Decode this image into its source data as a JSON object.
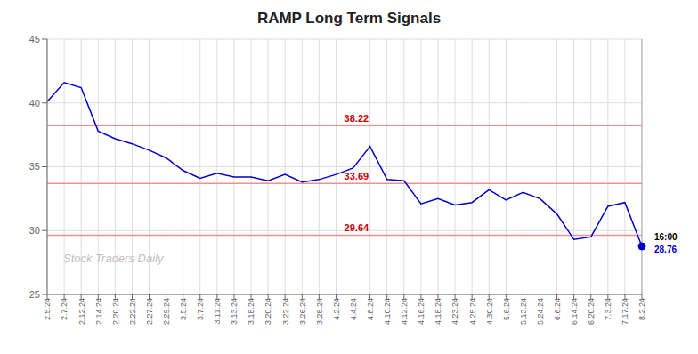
{
  "chart_data": {
    "type": "line",
    "title": "RAMP Long Term Signals",
    "categories": [
      "2.5.24",
      "2.7.24",
      "2.12.24",
      "2.14.24",
      "2.20.24",
      "2.22.24",
      "2.27.24",
      "2.29.24",
      "3.5.24",
      "3.7.24",
      "3.11.24",
      "3.13.24",
      "3.18.24",
      "3.20.24",
      "3.22.24",
      "3.26.24",
      "3.28.24",
      "4.2.24",
      "4.4.24",
      "4.8.24",
      "4.10.24",
      "4.12.24",
      "4.16.24",
      "4.18.24",
      "4.23.24",
      "4.25.24",
      "4.30.24",
      "5.6.24",
      "5.13.24",
      "5.24.24",
      "6.6.24",
      "6.14.24",
      "6.20.24",
      "7.3.24",
      "7.17.24",
      "8.2.24"
    ],
    "values": [
      40.1,
      41.6,
      41.2,
      37.8,
      37.2,
      36.8,
      36.3,
      35.7,
      34.7,
      34.1,
      34.5,
      34.2,
      34.2,
      33.9,
      34.4,
      33.8,
      34.0,
      34.4,
      34.9,
      36.6,
      34.0,
      33.9,
      32.1,
      32.5,
      32.0,
      32.2,
      33.2,
      32.4,
      33.0,
      32.5,
      31.3,
      29.3,
      29.5,
      31.9,
      32.2,
      28.76
    ],
    "color": "#0000cc",
    "ylim": [
      25,
      45
    ],
    "yticks": [
      25,
      30,
      35,
      40,
      45
    ],
    "grid": true,
    "hlines": {
      "values": [
        38.22,
        33.69,
        29.64
      ],
      "color": "#f09090",
      "label_color": "#cc0000"
    },
    "annotations": [
      {
        "text": "Stock Traders Daily",
        "color": "#c0c0c0"
      }
    ],
    "end_label": {
      "time": "16:00",
      "time_color": "#000000",
      "price": 28.76,
      "price_color": "#0000cc"
    },
    "title_color": "#222222"
  }
}
